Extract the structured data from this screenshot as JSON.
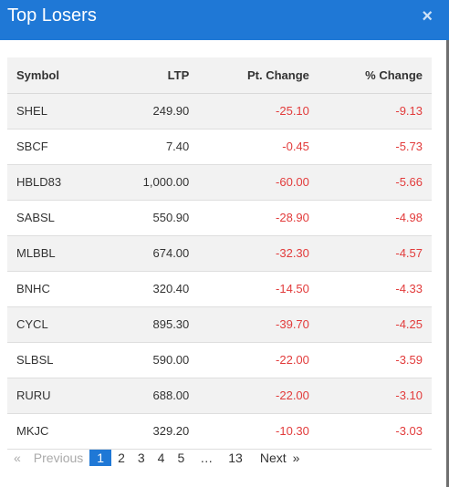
{
  "header": {
    "title": "Top Losers",
    "close_label": "×"
  },
  "table": {
    "columns": [
      "Symbol",
      "LTP",
      "Pt. Change",
      "% Change"
    ],
    "rows": [
      [
        "SHEL",
        "249.90",
        "-25.10",
        "-9.13"
      ],
      [
        "SBCF",
        "7.40",
        "-0.45",
        "-5.73"
      ],
      [
        "HBLD83",
        "1,000.00",
        "-60.00",
        "-5.66"
      ],
      [
        "SABSL",
        "550.90",
        "-28.90",
        "-4.98"
      ],
      [
        "MLBBL",
        "674.00",
        "-32.30",
        "-4.57"
      ],
      [
        "BNHC",
        "320.40",
        "-14.50",
        "-4.33"
      ],
      [
        "CYCL",
        "895.30",
        "-39.70",
        "-4.25"
      ],
      [
        "SLBSL",
        "590.00",
        "-22.00",
        "-3.59"
      ],
      [
        "RURU",
        "688.00",
        "-22.00",
        "-3.10"
      ],
      [
        "MKJC",
        "329.20",
        "-10.30",
        "-3.03"
      ]
    ]
  },
  "pagination": {
    "prev_arrow": "«",
    "prev_label": "Previous",
    "pages": [
      "1",
      "2",
      "3",
      "4",
      "5",
      "…",
      "13"
    ],
    "active_page": "1",
    "next_label": "Next",
    "next_arrow": "»"
  },
  "colors": {
    "header_bg": "#1f78d6",
    "negative": "#e23b3b"
  }
}
